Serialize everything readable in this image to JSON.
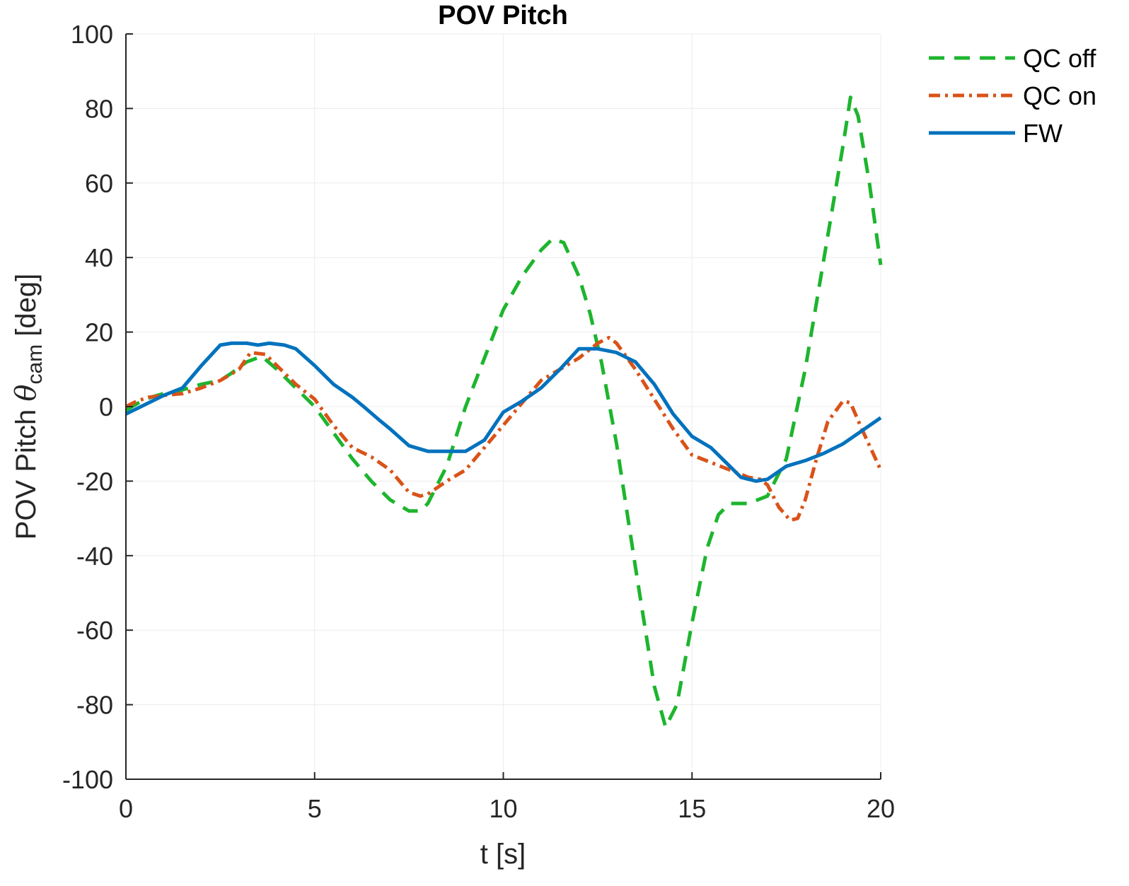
{
  "chart_data": {
    "type": "line",
    "title": "POV Pitch",
    "xlabel": "t [s]",
    "ylabel_prefix": "POV Pitch ",
    "ylabel_symbol": "θ",
    "ylabel_subscript": "cam",
    "ylabel_suffix": " [deg]",
    "xlim": [
      0,
      20
    ],
    "ylim": [
      -100,
      100
    ],
    "xticks": [
      0,
      5,
      10,
      15,
      20
    ],
    "yticks": [
      -100,
      -80,
      -60,
      -40,
      -20,
      0,
      20,
      40,
      60,
      80,
      100
    ],
    "grid": true,
    "legend_position": "top-right, outside",
    "series": [
      {
        "name": "QC off",
        "color": "#1db52e",
        "style": "dashed",
        "x": [
          0,
          0.5,
          1,
          1.5,
          2,
          2.5,
          2.8,
          3.2,
          3.6,
          4,
          4.5,
          5,
          5.5,
          6,
          6.5,
          7,
          7.5,
          7.8,
          8,
          8.5,
          9,
          9.5,
          10,
          10.5,
          11,
          11.3,
          11.6,
          12,
          12.3,
          12.6,
          13,
          13.5,
          14,
          14.3,
          14.6,
          15,
          15.4,
          15.7,
          16,
          16.5,
          17,
          17.5,
          18,
          18.5,
          19,
          19.2,
          19.4,
          19.7,
          20
        ],
        "y": [
          -1,
          2,
          3.5,
          4.5,
          6,
          7,
          9,
          12,
          13.5,
          10,
          5,
          0,
          -7,
          -14,
          -20,
          -25,
          -28,
          -28,
          -26,
          -16,
          0,
          13,
          26,
          35,
          42,
          45,
          44,
          35,
          25,
          12,
          -10,
          -43,
          -75,
          -86,
          -80,
          -58,
          -38,
          -29,
          -26,
          -26,
          -24,
          -14,
          10,
          40,
          70,
          83,
          78,
          60,
          38
        ]
      },
      {
        "name": "QC on",
        "color": "#d95319",
        "style": "dashdot",
        "x": [
          0,
          0.3,
          0.6,
          1,
          1.5,
          2,
          2.5,
          3,
          3.3,
          3.7,
          4,
          4.5,
          5,
          5.5,
          6,
          6.5,
          7,
          7.5,
          7.8,
          8,
          8.5,
          9,
          9.5,
          10,
          10.5,
          11,
          11.5,
          12,
          12.5,
          12.8,
          13,
          13.5,
          14,
          14.5,
          15,
          15.5,
          16,
          16.5,
          16.8,
          17,
          17.3,
          17.6,
          17.8,
          18,
          18.3,
          18.6,
          19,
          19.2,
          19.5,
          20
        ],
        "y": [
          0,
          1.5,
          2.5,
          3,
          3.5,
          5,
          7,
          10,
          14.5,
          14,
          11,
          6,
          2,
          -5,
          -11,
          -13.5,
          -17,
          -23,
          -24,
          -23.5,
          -20,
          -17,
          -11,
          -5,
          1,
          7,
          10,
          13,
          17,
          18.5,
          17,
          10,
          2,
          -6,
          -13,
          -15,
          -17,
          -19,
          -19.5,
          -21,
          -27,
          -30.5,
          -30,
          -25,
          -14,
          -4,
          1.5,
          1,
          -6,
          -17
        ]
      },
      {
        "name": "FW",
        "color": "#0072bd",
        "style": "solid",
        "x": [
          0,
          0.5,
          1,
          1.5,
          2,
          2.5,
          2.8,
          3.2,
          3.5,
          3.8,
          4.2,
          4.5,
          5,
          5.5,
          6,
          6.3,
          6.7,
          7,
          7.5,
          8,
          8.5,
          9,
          9.5,
          10,
          10.5,
          11,
          11.5,
          12,
          12.5,
          13,
          13.5,
          14,
          14.5,
          15,
          15.5,
          16,
          16.3,
          16.7,
          17,
          17.5,
          18,
          18.5,
          19,
          19.5,
          20
        ],
        "y": [
          -2,
          0.5,
          3,
          5,
          11,
          16.5,
          17,
          17,
          16.5,
          17,
          16.5,
          15.5,
          11,
          6,
          2.5,
          0,
          -3.5,
          -6,
          -10.5,
          -12,
          -12,
          -12,
          -9,
          -1.5,
          1.5,
          5,
          10,
          15.5,
          15.5,
          14.5,
          12,
          6,
          -2,
          -8,
          -11,
          -16,
          -19,
          -20,
          -19.5,
          -16,
          -14.5,
          -12.5,
          -10,
          -6.5,
          -3
        ]
      }
    ]
  }
}
